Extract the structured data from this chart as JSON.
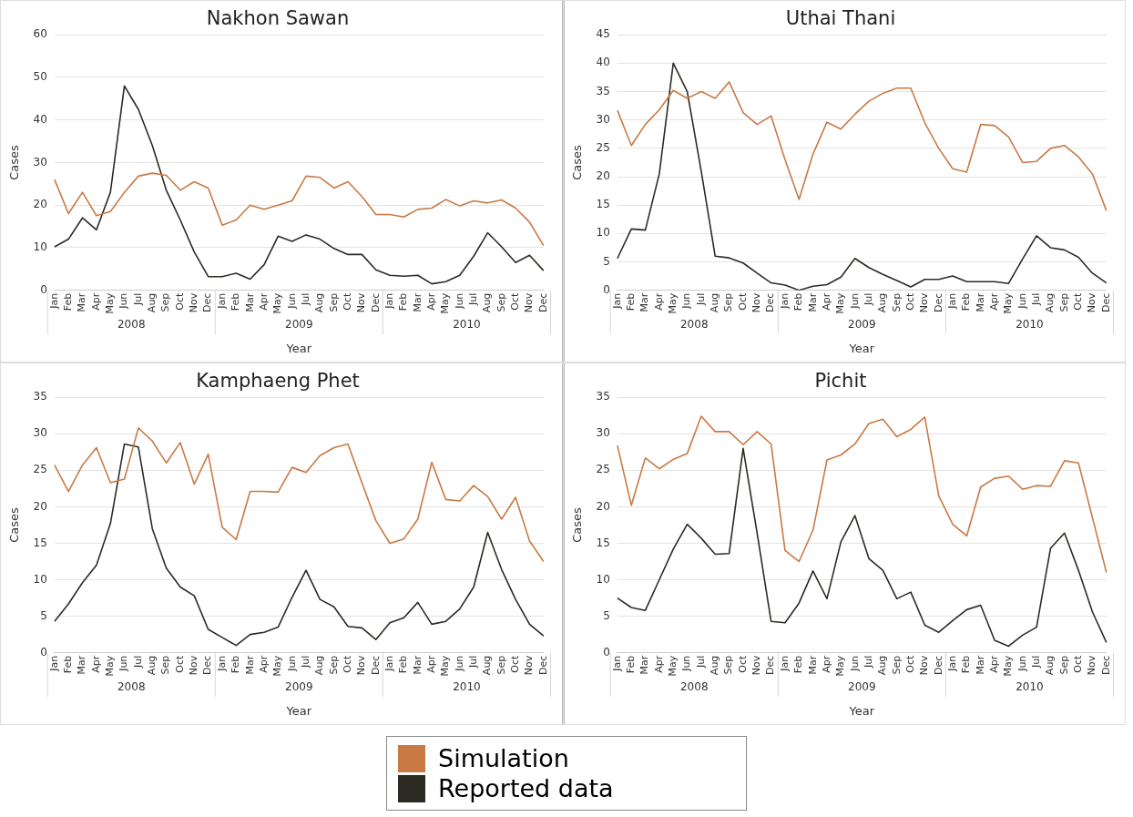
{
  "chart_data": [
    {
      "type": "line",
      "title": "Nakhon Sawan",
      "xlabel": "Year",
      "ylabel": "Cases",
      "categories": [
        "Jan",
        "Feb",
        "Mar",
        "Apr",
        "May",
        "Jun",
        "Jul",
        "Aug",
        "Sep",
        "Oct",
        "Nov",
        "Dec",
        "Jan",
        "Feb",
        "Mar",
        "Apr",
        "May",
        "Jun",
        "Jul",
        "Aug",
        "Sep",
        "Oct",
        "Nov",
        "Dec",
        "Jan",
        "Feb",
        "Mar",
        "Apr",
        "May",
        "Jun",
        "Jul",
        "Aug",
        "Sep",
        "Oct",
        "Nov",
        "Dec"
      ],
      "annotations": [
        "2008",
        "2009",
        "2010"
      ],
      "ylim": [
        0,
        60
      ],
      "yticks": [
        0,
        10,
        20,
        30,
        40,
        50,
        60
      ],
      "grid": "y",
      "legend": "bottom",
      "series": [
        {
          "name": "Simulation",
          "color": "#c97a45",
          "values": [
            26,
            18,
            23,
            17.5,
            18.5,
            23,
            26.8,
            27.5,
            27,
            23.5,
            25.5,
            24,
            15.3,
            16.5,
            20,
            19,
            20,
            21,
            26.8,
            26.5,
            24,
            25.5,
            22,
            17.8,
            17.8,
            17.2,
            19,
            19.3,
            21.3,
            19.8,
            21,
            20.5,
            21.2,
            19.3,
            16,
            10.5
          ]
        },
        {
          "name": "Reported data",
          "color": "#2b2b24",
          "values": [
            10.2,
            12,
            17,
            14.2,
            23,
            48,
            42.5,
            34,
            23.5,
            16.5,
            9,
            3.2,
            3.2,
            4,
            2.6,
            6,
            12.7,
            11.5,
            13,
            12,
            9.8,
            8.4,
            8.4,
            4.8,
            3.5,
            3.3,
            3.5,
            1.5,
            2,
            3.5,
            8,
            13.5,
            10.2,
            6.5,
            8.2,
            4.6
          ]
        }
      ]
    },
    {
      "type": "line",
      "title": "Uthai Thani",
      "xlabel": "Year",
      "ylabel": "Cases",
      "categories": [
        "Jan",
        "Feb",
        "Mar",
        "Apr",
        "May",
        "Jun",
        "Jul",
        "Aug",
        "Sep",
        "Oct",
        "Nov",
        "Dec",
        "Jan",
        "Feb",
        "Mar",
        "Apr",
        "May",
        "Jun",
        "Jul",
        "Aug",
        "Sep",
        "Oct",
        "Nov",
        "Dec",
        "Jan",
        "Feb",
        "Mar",
        "Apr",
        "May",
        "Jun",
        "Jul",
        "Aug",
        "Sep",
        "Oct",
        "Nov",
        "Dec"
      ],
      "annotations": [
        "2008",
        "2009",
        "2010"
      ],
      "ylim": [
        0,
        45
      ],
      "yticks": [
        0,
        5,
        10,
        15,
        20,
        25,
        30,
        35,
        40,
        45
      ],
      "grid": "y",
      "legend": "bottom",
      "series": [
        {
          "name": "Simulation",
          "color": "#c97a45",
          "values": [
            31.7,
            25.5,
            29.2,
            31.8,
            35.2,
            33.8,
            35,
            33.8,
            36.7,
            31.3,
            29.2,
            30.7,
            23,
            16,
            24,
            29.6,
            28.4,
            31,
            33.3,
            34.7,
            35.6,
            35.6,
            29.5,
            25,
            21.4,
            20.8,
            29.2,
            29,
            27,
            22.5,
            22.7,
            25,
            25.5,
            23.5,
            20.5,
            14
          ]
        },
        {
          "name": "Reported data",
          "color": "#2b2b24",
          "values": [
            5.6,
            10.8,
            10.6,
            20.5,
            40,
            35,
            21,
            6,
            5.7,
            4.8,
            3,
            1.3,
            0.9,
            0,
            0.7,
            1,
            2.3,
            5.6,
            4,
            2.8,
            1.7,
            0.6,
            1.9,
            1.9,
            2.5,
            1.5,
            1.5,
            1.5,
            1.2,
            5.5,
            9.6,
            7.5,
            7.1,
            5.8,
            3,
            1.3
          ]
        }
      ]
    },
    {
      "type": "line",
      "title": "Kamphaeng Phet",
      "xlabel": "Year",
      "ylabel": "Cases",
      "categories": [
        "Jan",
        "Feb",
        "Mar",
        "Apr",
        "May",
        "Jun",
        "Jul",
        "Aug",
        "Sep",
        "Oct",
        "Nov",
        "Dec",
        "Jan",
        "Feb",
        "Mar",
        "Apr",
        "May",
        "Jun",
        "Jul",
        "Aug",
        "Sep",
        "Oct",
        "Nov",
        "Dec",
        "Jan",
        "Feb",
        "Mar",
        "Apr",
        "May",
        "Jun",
        "Jul",
        "Aug",
        "Sep",
        "Oct",
        "Nov",
        "Dec"
      ],
      "annotations": [
        "2008",
        "2009",
        "2010"
      ],
      "ylim": [
        0,
        35
      ],
      "yticks": [
        0,
        5,
        10,
        15,
        20,
        25,
        30,
        35
      ],
      "grid": "y",
      "legend": "bottom",
      "series": [
        {
          "name": "Simulation",
          "color": "#c97a45",
          "values": [
            25.7,
            22.1,
            25.7,
            28.1,
            23.3,
            23.8,
            30.8,
            29,
            26,
            28.8,
            23.1,
            27.2,
            17.2,
            15.5,
            22.1,
            22.1,
            22,
            25.4,
            24.7,
            27,
            28.1,
            28.6,
            23.3,
            18.1,
            15,
            15.6,
            18.3,
            26.1,
            21,
            20.8,
            22.9,
            21.4,
            18.3,
            21.3,
            15.3,
            12.5
          ]
        },
        {
          "name": "Reported data",
          "color": "#2b2b24",
          "values": [
            4.3,
            6.7,
            9.6,
            12,
            17.7,
            28.6,
            28.2,
            17,
            11.6,
            9,
            7.8,
            3.2,
            2.1,
            1,
            2.5,
            2.8,
            3.5,
            7.6,
            11.3,
            7.3,
            6.3,
            3.6,
            3.4,
            1.8,
            4.1,
            4.8,
            6.9,
            3.9,
            4.3,
            6,
            9,
            16.5,
            11.4,
            7.3,
            3.9,
            2.3
          ]
        }
      ]
    },
    {
      "type": "line",
      "title": "Pichit",
      "xlabel": "Year",
      "ylabel": "Cases",
      "categories": [
        "Jan",
        "Feb",
        "Mar",
        "Apr",
        "May",
        "Jun",
        "Jul",
        "Aug",
        "Sep",
        "Oct",
        "Nov",
        "Dec",
        "Jan",
        "Feb",
        "Mar",
        "Apr",
        "May",
        "Jun",
        "Jul",
        "Aug",
        "Sep",
        "Oct",
        "Nov",
        "Dec",
        "Jan",
        "Feb",
        "Mar",
        "Apr",
        "May",
        "Jun",
        "Jul",
        "Aug",
        "Sep",
        "Oct",
        "Nov",
        "Dec"
      ],
      "annotations": [
        "2008",
        "2009",
        "2010"
      ],
      "ylim": [
        0,
        35
      ],
      "yticks": [
        0,
        5,
        10,
        15,
        20,
        25,
        30,
        35
      ],
      "grid": "y",
      "legend": "bottom",
      "series": [
        {
          "name": "Simulation",
          "color": "#c97a45",
          "values": [
            28.4,
            20.2,
            26.7,
            25.2,
            26.5,
            27.3,
            32.4,
            30.3,
            30.3,
            28.5,
            30.3,
            28.6,
            14,
            12.5,
            16.8,
            26.4,
            27.1,
            28.6,
            31.4,
            32,
            29.6,
            30.6,
            32.3,
            21.5,
            17.6,
            16,
            22.7,
            23.9,
            24.2,
            22.4,
            22.9,
            22.8,
            26.3,
            26,
            18.5,
            11
          ]
        },
        {
          "name": "Reported data",
          "color": "#2b2b24",
          "values": [
            7.5,
            6.2,
            5.8,
            10,
            14.2,
            17.6,
            15.7,
            13.5,
            13.6,
            28,
            16.4,
            4.3,
            4.1,
            6.8,
            11.2,
            7.4,
            15.2,
            18.8,
            12.9,
            11.3,
            7.4,
            8.3,
            3.8,
            2.8,
            4.4,
            5.9,
            6.5,
            1.7,
            0.9,
            2.4,
            3.5,
            14.3,
            16.4,
            11.3,
            5.6,
            1.4
          ]
        }
      ]
    }
  ]
}
